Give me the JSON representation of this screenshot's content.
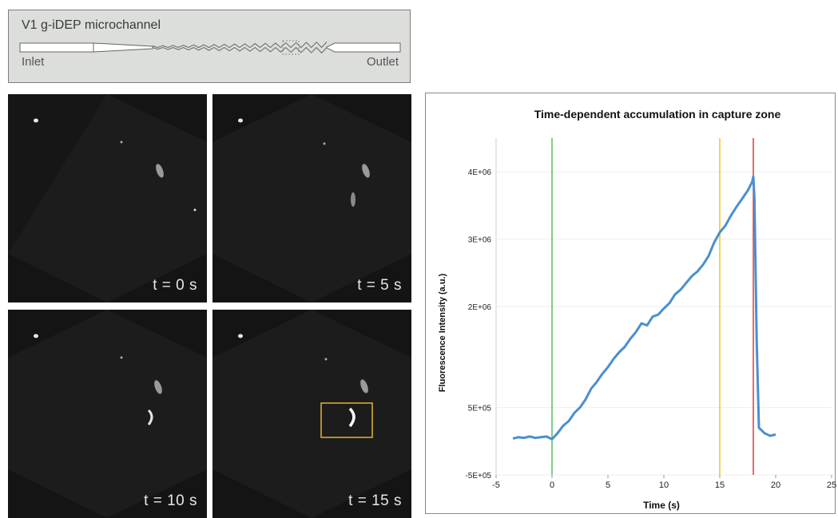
{
  "channel": {
    "title": "V1 g-iDEP microchannel",
    "inlet_label": "Inlet",
    "outlet_label": "Outlet"
  },
  "panels": [
    {
      "time_label": "t = 0 s"
    },
    {
      "time_label": "t = 5 s"
    },
    {
      "time_label": "t = 10 s"
    },
    {
      "time_label": "t = 15 s"
    }
  ],
  "colors": {
    "series": "#4a8fd0",
    "start_line": "#5cb85c",
    "mid_line": "#f0c419",
    "end_line": "#e53935",
    "highlight_box": "#e2b33a"
  },
  "chart_data": {
    "type": "line",
    "title": "Time-dependent accumulation in capture zone",
    "xlabel": "Time (s)",
    "ylabel": "Fluorescence Intensity (a.u.)",
    "xlim": [
      -5,
      25
    ],
    "ylim": [
      -500000,
      4500000
    ],
    "xticks": [
      -5,
      0,
      5,
      10,
      15,
      20,
      25
    ],
    "yticks": [
      {
        "value": -500000,
        "label": "-5E+05"
      },
      {
        "value": 500000,
        "label": "5E+05"
      },
      {
        "value": 2000000,
        "label": "2E+06"
      },
      {
        "value": 3000000,
        "label": "3E+06"
      },
      {
        "value": 4000000,
        "label": "4E+06"
      }
    ],
    "vlines": [
      {
        "x": 0,
        "color": "#5cb85c"
      },
      {
        "x": 15,
        "color": "#f0c419"
      },
      {
        "x": 18,
        "color": "#e53935"
      }
    ],
    "series": [
      {
        "x": [
          -3.5,
          -3,
          -2.5,
          -2,
          -1.5,
          -1,
          -0.5,
          0,
          0.5,
          1,
          1.5,
          2,
          2.5,
          3,
          3.5,
          4,
          4.5,
          5,
          5.5,
          6,
          6.5,
          7,
          7.5,
          8,
          8.5,
          9,
          9.5,
          10,
          10.5,
          11,
          11.5,
          12,
          12.5,
          13,
          13.5,
          14,
          14.5,
          15,
          15.5,
          16,
          16.5,
          17,
          17.5,
          17.9,
          18,
          18.1,
          18.3,
          18.5,
          19,
          19.5,
          20
        ],
        "values": [
          0.04,
          0.06,
          0.05,
          0.07,
          0.05,
          0.06,
          0.07,
          0.03,
          0.12,
          0.23,
          0.3,
          0.42,
          0.5,
          0.62,
          0.78,
          0.88,
          1.0,
          1.1,
          1.22,
          1.32,
          1.4,
          1.52,
          1.62,
          1.75,
          1.72,
          1.85,
          1.88,
          1.97,
          2.05,
          2.18,
          2.25,
          2.35,
          2.45,
          2.52,
          2.62,
          2.75,
          2.95,
          3.1,
          3.2,
          3.35,
          3.48,
          3.6,
          3.72,
          3.85,
          3.93,
          3.6,
          1.5,
          0.2,
          0.12,
          0.08,
          0.1
        ]
      }
    ]
  }
}
